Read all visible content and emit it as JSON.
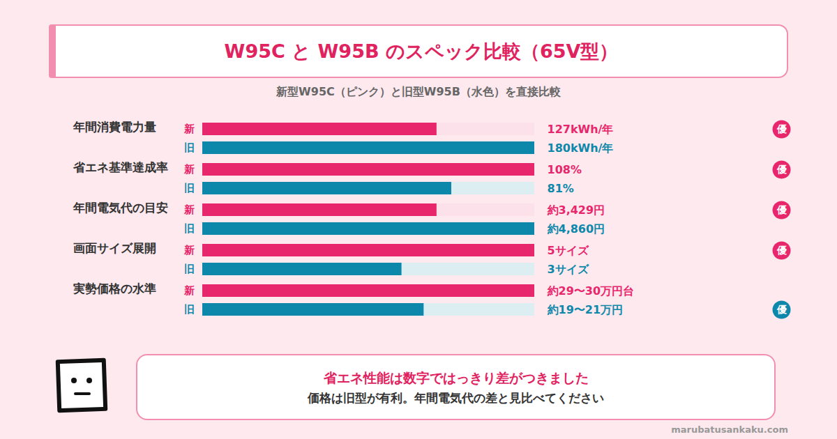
{
  "title": "W95C と W95B のスペック比較（65V型）",
  "subtitle": "新型W95C（ピンク）と旧型W95B（水色）を直接比較",
  "chart_data": [
    {
      "type": "bar",
      "orientation": "horizontal",
      "title": "年間消費電力量",
      "categories": [
        "新",
        "旧"
      ],
      "values": [
        127,
        180
      ],
      "value_labels": [
        "127kWh/年",
        "180kWh/年"
      ],
      "colors": [
        "#e8266b",
        "#0e88aa"
      ],
      "xlim": [
        0,
        180
      ],
      "xticks": [],
      "grid": false,
      "tick_labels": "y",
      "data_labels": true,
      "annotations": [
        {
          "text": "優",
          "category": "新"
        }
      ]
    },
    {
      "type": "bar",
      "orientation": "horizontal",
      "title": "省エネ基準達成率",
      "categories": [
        "新",
        "旧"
      ],
      "values": [
        108,
        81
      ],
      "value_labels": [
        "108%",
        "81%"
      ],
      "colors": [
        "#e8266b",
        "#0e88aa"
      ],
      "xlim": [
        0,
        108
      ],
      "xticks": [],
      "grid": false,
      "tick_labels": "y",
      "data_labels": true,
      "annotations": [
        {
          "text": "優",
          "category": "新"
        }
      ]
    },
    {
      "type": "bar",
      "orientation": "horizontal",
      "title": "年間電気代の目安",
      "categories": [
        "新",
        "旧"
      ],
      "values": [
        3429,
        4860
      ],
      "value_labels": [
        "約3,429円",
        "約4,860円"
      ],
      "colors": [
        "#e8266b",
        "#0e88aa"
      ],
      "xlim": [
        0,
        4860
      ],
      "xticks": [],
      "grid": false,
      "tick_labels": "y",
      "data_labels": true,
      "annotations": [
        {
          "text": "優",
          "category": "新"
        }
      ]
    },
    {
      "type": "bar",
      "orientation": "horizontal",
      "title": "画面サイズ展開",
      "categories": [
        "新",
        "旧"
      ],
      "values": [
        5,
        3
      ],
      "value_labels": [
        "5サイズ",
        "3サイズ"
      ],
      "colors": [
        "#e8266b",
        "#0e88aa"
      ],
      "xlim": [
        0,
        5
      ],
      "xticks": [],
      "grid": false,
      "tick_labels": "y",
      "data_labels": true,
      "annotations": [
        {
          "text": "優",
          "category": "新"
        }
      ]
    },
    {
      "type": "bar",
      "orientation": "horizontal",
      "title": "実勢価格の水準",
      "categories": [
        "新",
        "旧"
      ],
      "values": [
        30,
        20
      ],
      "value_labels": [
        "約29〜30万円台",
        "約19〜21万円"
      ],
      "colors": [
        "#e8266b",
        "#0e88aa"
      ],
      "xlim": [
        0,
        30
      ],
      "xticks": [],
      "grid": false,
      "tick_labels": "y",
      "data_labels": true,
      "annotations": [
        {
          "text": "優",
          "category": "旧"
        }
      ]
    }
  ],
  "note": {
    "headline": "省エネ性能は数字ではっきり差がつきました",
    "text": "価格は旧型が有利。年間電気代の差と見比べてください"
  },
  "credit": "marubatusankaku.com"
}
